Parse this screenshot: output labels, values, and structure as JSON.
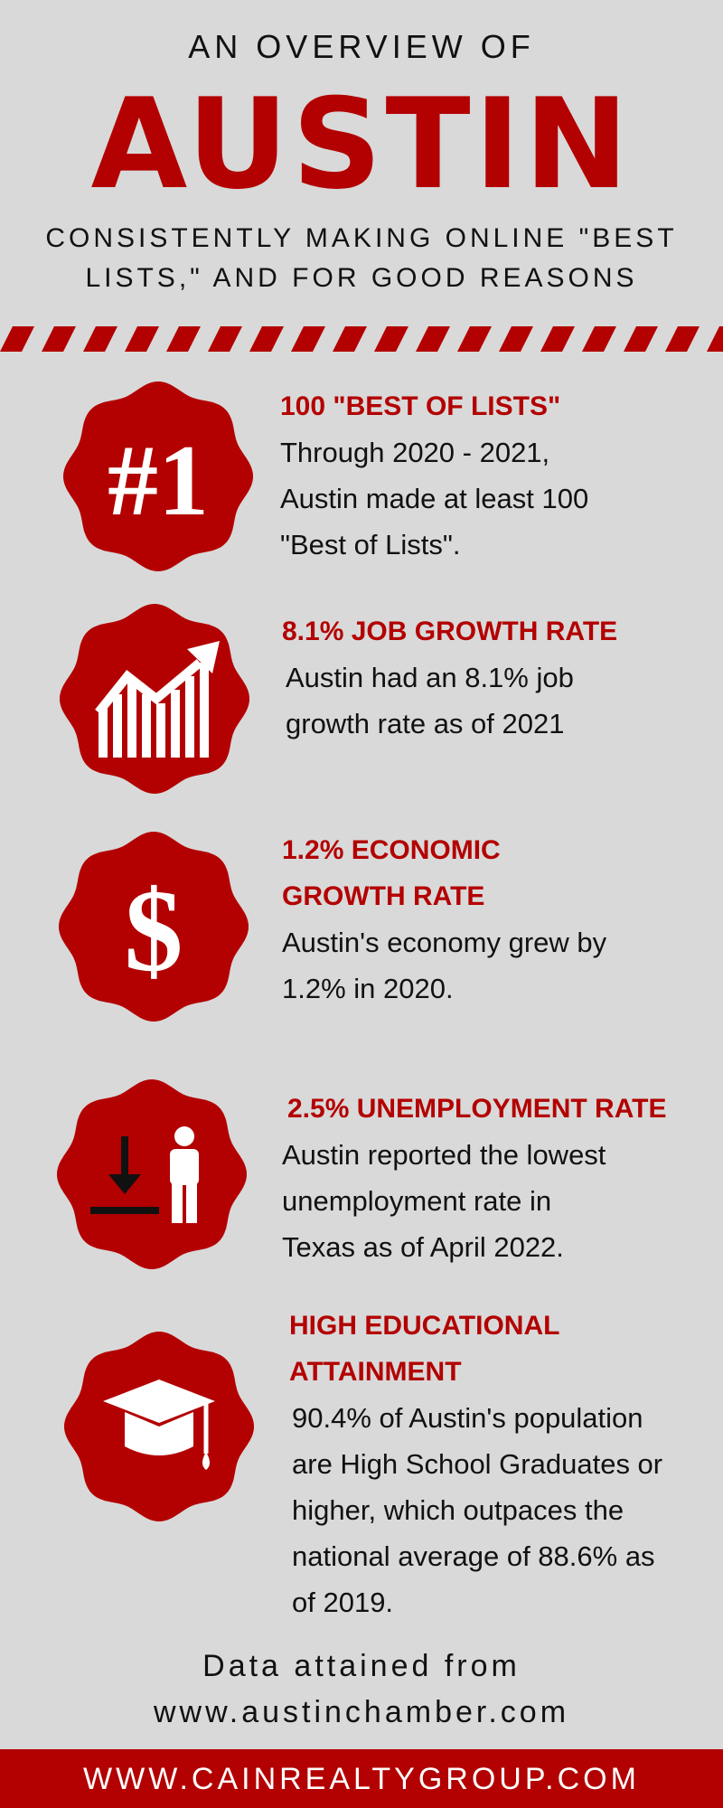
{
  "header": {
    "kicker": "AN OVERVIEW OF",
    "title": "AUSTIN",
    "subtitle": [
      "CONSISTENTLY MAKING ONLINE \"BEST",
      "LISTS,\" AND FOR GOOD REASONS"
    ]
  },
  "items": [
    {
      "icon": "#1",
      "heading": [
        "100 \"BEST OF LISTS\""
      ],
      "body": [
        "Through 2020 - 2021,",
        "Austin made at least 100",
        "\"Best of Lists\"."
      ]
    },
    {
      "heading": [
        "8.1% JOB GROWTH RATE"
      ],
      "body": [
        "Austin had an 8.1% job",
        "growth rate as of 2021"
      ]
    },
    {
      "icon": "$",
      "heading": [
        "1.2% ECONOMIC",
        "GROWTH RATE"
      ],
      "body": [
        "Austin's economy grew by",
        "1.2% in 2020."
      ]
    },
    {
      "heading": [
        "2.5% UNEMPLOYMENT RATE"
      ],
      "body": [
        "Austin reported the lowest",
        "unemployment rate in",
        "Texas as of April 2022."
      ]
    },
    {
      "heading": [
        "HIGH EDUCATIONAL",
        "ATTAINMENT"
      ],
      "body": [
        "90.4% of Austin's population",
        "are High School Graduates or",
        "higher, which outpaces the",
        "national average of 88.6% as",
        "of 2019."
      ]
    }
  ],
  "footer": {
    "source": [
      "Data attained from",
      "www.austinchamber.com"
    ],
    "website": "WWW.CAINREALTYGROUP.COM"
  }
}
